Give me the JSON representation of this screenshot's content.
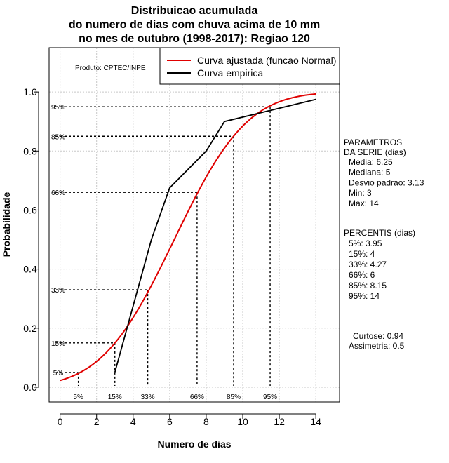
{
  "chart_data": {
    "type": "line",
    "title_lines": [
      "Distribuicao acumulada",
      "do numero de dias com chuva acima de 10 mm",
      "no mes de outubro (1998-2017): Regiao 120"
    ],
    "xlabel": "Numero de dias",
    "ylabel": "Probabilidade",
    "xlim": [
      -0.6,
      15.3
    ],
    "ylim": [
      -0.05,
      1.15
    ],
    "x_ticks": [
      0,
      2,
      4,
      6,
      8,
      10,
      12,
      14
    ],
    "x_tick_labels": [
      "0",
      "2",
      "4",
      "6",
      "8",
      "10",
      "12",
      "14"
    ],
    "y_ticks": [
      0.0,
      0.2,
      0.4,
      0.6,
      0.8,
      1.0
    ],
    "y_tick_labels": [
      "0.0",
      "0.2",
      "0.4",
      "0.6",
      "0.8",
      "1.0"
    ],
    "grid": true,
    "product_label": "Produto: CPTEC/INPE",
    "legend": {
      "position": "top-right",
      "entries": [
        {
          "label": "Curva ajustada (funcao Normal)",
          "color": "#e00000"
        },
        {
          "label": "Curva empirica",
          "color": "#000000"
        }
      ]
    },
    "series": [
      {
        "name": "Curva ajustada (funcao Normal)",
        "color": "#e00000",
        "kind": "normal_cdf",
        "mean": 6.25,
        "sd": 3.13,
        "x_range": [
          0,
          14
        ]
      },
      {
        "name": "Curva empirica",
        "color": "#000000",
        "x": [
          3,
          5,
          6,
          8,
          9,
          14
        ],
        "y": [
          0.05,
          0.5,
          0.675,
          0.8,
          0.9,
          0.975
        ]
      }
    ],
    "percentile_markers": [
      {
        "label": "5%",
        "prob": 0.05,
        "x": 1.0
      },
      {
        "label": "15%",
        "prob": 0.15,
        "x": 3.0
      },
      {
        "label": "33%",
        "prob": 0.33,
        "x": 4.8
      },
      {
        "label": "66%",
        "prob": 0.66,
        "x": 7.5
      },
      {
        "label": "85%",
        "prob": 0.85,
        "x": 9.5
      },
      {
        "label": "95%",
        "prob": 0.95,
        "x": 11.5
      }
    ],
    "parameters": {
      "header_lines": [
        "PARAMETROS",
        "DA SERIE (dias)"
      ],
      "lines": [
        "Media: 6.25",
        "Mediana: 5",
        "Desvio padrao: 3.13",
        "Min: 3",
        "Max: 14"
      ]
    },
    "percentiles": {
      "header": "PERCENTIS (dias)",
      "lines": [
        "5%: 3.95",
        "15%: 4",
        "33%: 4.27",
        "66%: 6",
        "85%: 8.15",
        "95%: 14"
      ]
    },
    "shape": {
      "lines": [
        "Curtose: 0.94",
        "Assimetria: 0.5"
      ]
    }
  }
}
